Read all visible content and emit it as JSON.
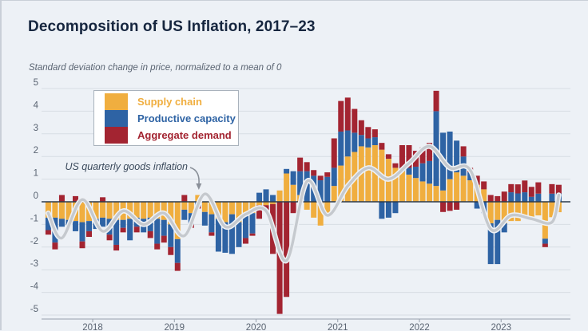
{
  "page": {
    "title": "Decomposition of US Inflation, 2017–23",
    "subtitle": "Standard deviation change in price, normalized to a mean of 0"
  },
  "legend": {
    "items": [
      {
        "label": "Supply chain",
        "color": "#F0AE3F"
      },
      {
        "label": "Productive capacity",
        "color": "#2E63A4"
      },
      {
        "label": "Aggregate demand",
        "color": "#A32431"
      }
    ]
  },
  "annotation": {
    "text": "US quarterly goods inflation"
  },
  "axes": {
    "y_ticks": [
      "5",
      "4",
      "3",
      "2",
      "1",
      "0",
      "-1",
      "-2",
      "-3",
      "-4",
      "-5"
    ],
    "y_values": [
      5,
      4,
      3,
      2,
      1,
      0,
      -1,
      -2,
      -3,
      -4,
      -5
    ],
    "x_ticks": [
      "2018",
      "2019",
      "2020",
      "2021",
      "2022",
      "2023"
    ],
    "ylim": [
      -5,
      5
    ]
  },
  "colors": {
    "background": "#EDF1F6",
    "grid": "#D7DDE4",
    "zero_line": "#2C3A4C",
    "axis_line": "#97A0AC",
    "tick_text": "#5A6472",
    "line": "#C5C9CE",
    "line_halo": "#EEF1F5",
    "arrow": "#8A9099"
  },
  "chart_data": {
    "type": "bar",
    "subtype": "stacked-monthly-bars-with-quarterly-line",
    "title": "Decomposition of US Inflation, 2017–23",
    "ylabel": "Standard deviation change in price, normalized to a mean of 0",
    "ylim": [
      -5,
      5
    ],
    "grid": true,
    "legend_position": "top-left",
    "months": [
      "2017-06",
      "2017-07",
      "2017-08",
      "2017-09",
      "2017-10",
      "2017-11",
      "2017-12",
      "2018-01",
      "2018-02",
      "2018-03",
      "2018-04",
      "2018-05",
      "2018-06",
      "2018-07",
      "2018-08",
      "2018-09",
      "2018-10",
      "2018-11",
      "2018-12",
      "2019-01",
      "2019-02",
      "2019-03",
      "2019-04",
      "2019-05",
      "2019-06",
      "2019-07",
      "2019-08",
      "2019-09",
      "2019-10",
      "2019-11",
      "2019-12",
      "2020-01",
      "2020-02",
      "2020-03",
      "2020-04",
      "2020-05",
      "2020-06",
      "2020-07",
      "2020-08",
      "2020-09",
      "2020-10",
      "2020-11",
      "2020-12",
      "2021-01",
      "2021-02",
      "2021-03",
      "2021-04",
      "2021-05",
      "2021-06",
      "2021-07",
      "2021-08",
      "2021-09",
      "2021-10",
      "2021-11",
      "2021-12",
      "2022-01",
      "2022-02",
      "2022-03",
      "2022-04",
      "2022-05",
      "2022-06",
      "2022-07",
      "2022-08",
      "2022-09",
      "2022-10",
      "2022-11",
      "2022-12",
      "2023-01",
      "2023-02",
      "2023-03",
      "2023-04",
      "2023-05",
      "2023-06",
      "2023-07",
      "2023-08",
      "2023-09"
    ],
    "series": [
      {
        "name": "Supply chain",
        "values": [
          -0.7,
          -0.7,
          -0.75,
          -0.8,
          -0.85,
          -0.9,
          -0.85,
          -0.75,
          -0.7,
          -0.75,
          -0.8,
          -0.8,
          -0.75,
          -0.7,
          -0.75,
          -0.7,
          -0.75,
          -0.8,
          -1.0,
          -1.65,
          -0.35,
          -0.5,
          0.3,
          -0.45,
          -0.55,
          -0.75,
          -0.9,
          -0.55,
          -0.9,
          -0.5,
          -0.5,
          -0.15,
          -0.15,
          -0.1,
          0.5,
          1.25,
          0.75,
          0.3,
          -0.35,
          -0.7,
          -1.05,
          -0.55,
          0.7,
          1.6,
          2.0,
          2.2,
          2.45,
          2.4,
          2.5,
          2.3,
          1.9,
          1.5,
          1.35,
          1.2,
          1.05,
          0.9,
          0.8,
          0.7,
          0.5,
          1.0,
          1.3,
          1.15,
          0.95,
          0.75,
          0.55,
          -0.95,
          -0.8,
          -0.95,
          -0.85,
          -0.85,
          -0.72,
          -0.8,
          -0.6,
          -1.63,
          -0.68,
          -0.46
        ]
      },
      {
        "name": "Productive capacity",
        "values": [
          -0.55,
          -1.1,
          -0.35,
          -0.25,
          -0.45,
          -0.85,
          -0.45,
          -0.45,
          -0.4,
          -0.7,
          -1.1,
          -0.35,
          -0.95,
          -0.4,
          -0.6,
          -0.6,
          -1.1,
          -0.7,
          -1.0,
          -1.05,
          -0.45,
          -0.5,
          -0.2,
          -0.6,
          -0.8,
          -1.45,
          -1.35,
          -1.75,
          -1.1,
          -1.1,
          -0.9,
          0.4,
          0.55,
          0.3,
          0.0,
          0.2,
          0.6,
          1.05,
          1.35,
          1.15,
          0.95,
          1.1,
          0.8,
          1.5,
          1.15,
          0.85,
          0.5,
          0.4,
          0.35,
          -0.75,
          -0.7,
          -0.5,
          0.15,
          0.3,
          0.5,
          0.8,
          1.0,
          3.3,
          2.55,
          2.1,
          1.4,
          0.85,
          0.35,
          -0.3,
          -0.5,
          -1.8,
          -1.95,
          -0.4,
          0.42,
          0.37,
          0.42,
          0.22,
          0.36,
          -0.22,
          0.36,
          0.37
        ]
      },
      {
        "name": "Aggregate demand",
        "values": [
          -0.2,
          -0.3,
          0.3,
          0.0,
          0.25,
          -0.3,
          -0.25,
          0.0,
          0.2,
          -0.25,
          -0.25,
          -0.2,
          0.0,
          -0.25,
          0.0,
          -0.3,
          -0.25,
          -0.3,
          -0.35,
          -0.35,
          0.3,
          -0.15,
          -0.1,
          0.0,
          -0.15,
          0.0,
          0.0,
          0.0,
          0.0,
          -0.25,
          -0.1,
          -0.6,
          -0.25,
          -2.2,
          -4.95,
          -4.2,
          -0.5,
          0.6,
          0.4,
          0.25,
          0.2,
          0.2,
          1.3,
          1.35,
          1.45,
          1.05,
          0.65,
          0.5,
          0.35,
          0.3,
          0.2,
          0.2,
          1.0,
          1.0,
          0.7,
          0.7,
          0.8,
          0.9,
          -0.45,
          -0.4,
          -0.35,
          0.45,
          0.2,
          0.4,
          0.35,
          0.3,
          0.25,
          0.45,
          0.36,
          0.4,
          0.52,
          0.44,
          0.5,
          -0.15,
          0.42,
          0.38
        ]
      }
    ],
    "line": {
      "name": "US quarterly goods inflation",
      "quarters": [
        "2017Q2",
        "2017Q3",
        "2017Q4",
        "2018Q1",
        "2018Q2",
        "2018Q3",
        "2018Q4",
        "2019Q1",
        "2019Q2",
        "2019Q3",
        "2019Q4",
        "2020Q1",
        "2020Q2",
        "2020Q3",
        "2020Q4",
        "2021Q1",
        "2021Q2",
        "2021Q3",
        "2021Q4",
        "2022Q1",
        "2022Q2",
        "2022Q3",
        "2022Q4",
        "2023Q1",
        "2023Q2",
        "2023Q3",
        "2023-09"
      ],
      "month_index": [
        0,
        2,
        5,
        8,
        11,
        14,
        17,
        20,
        23,
        26,
        29,
        32,
        35,
        38,
        41,
        44,
        47,
        50,
        53,
        56,
        59,
        62,
        65,
        68,
        71,
        74,
        75
      ],
      "values": [
        -0.5,
        -1.6,
        0.1,
        -1.3,
        -0.4,
        -1.0,
        -0.5,
        -1.5,
        0.35,
        -1.1,
        -0.55,
        -0.4,
        -2.6,
        0.9,
        -0.6,
        0.7,
        1.5,
        1.0,
        1.7,
        2.45,
        1.5,
        1.4,
        -1.2,
        -0.6,
        -0.75,
        -0.9,
        0.3
      ]
    },
    "x_tick_month_index": [
      7,
      19,
      31,
      43,
      55,
      67
    ]
  }
}
